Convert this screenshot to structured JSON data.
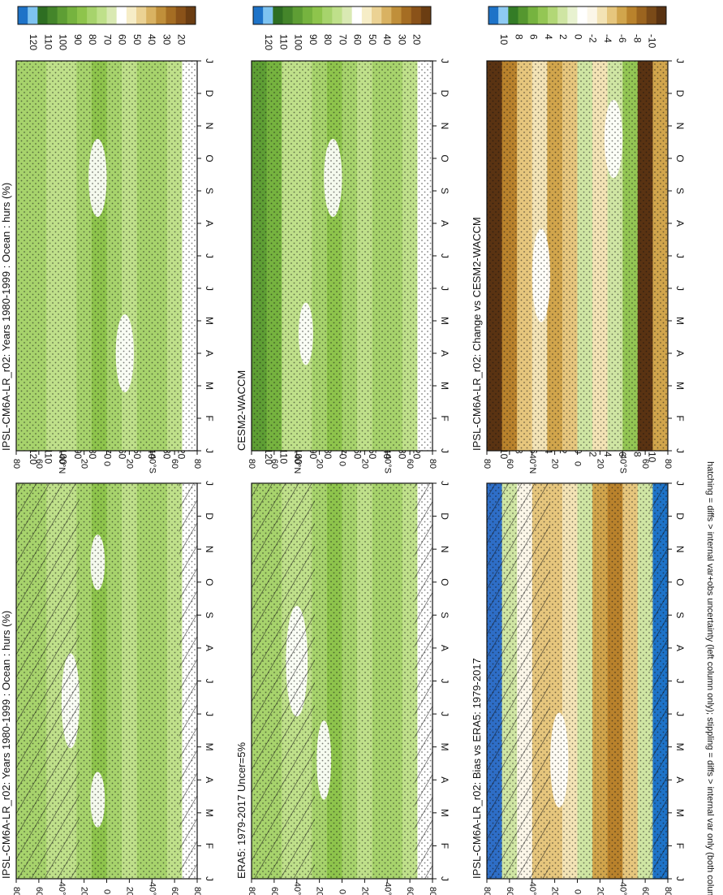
{
  "figure_footer": "hatching = diffs > internal var+obs uncertainty (left column only); stippling = diffs > internal var only (both columns)",
  "colors": {
    "abs_scale": [
      "#ffffff",
      "#d9e9b3",
      "#bfe08a",
      "#a7d36c",
      "#8ec44c",
      "#76b33f",
      "#5e9e34",
      "#44852a",
      "#2e6e22",
      "#1e73c8",
      "#7ec3f0"
    ],
    "abs_scale_brown": [
      "#6b3d12",
      "#8a5219",
      "#a56d23",
      "#c08f3a",
      "#d9b262",
      "#ebd294",
      "#f6edc7"
    ],
    "diff_scale": [
      "#5a3312",
      "#7a4a18",
      "#9b641f",
      "#b9822c",
      "#d1a54c",
      "#e6c67d",
      "#f3e3b5",
      "#fbf6e8",
      "#ffffff",
      "#e8f2d0",
      "#cfe5a3",
      "#b2d776",
      "#94c654",
      "#76b33f",
      "#55972f",
      "#347c26",
      "#1e73c8",
      "#8ecaf2"
    ],
    "stipple": "#111111"
  },
  "chart_data": [
    {
      "id": "p1",
      "type": "heatmap",
      "title": "IPSL-CM6A-LR_r02: Years 1980-1999 : Ocean : hurs (%)",
      "x_categories": [
        "J",
        "F",
        "M",
        "A",
        "M",
        "J",
        "J",
        "A",
        "S",
        "O",
        "N",
        "D",
        "J"
      ],
      "lat_ticks": [
        "80",
        "60",
        "40°N",
        "20",
        "0",
        "20",
        "40°S",
        "60",
        "80"
      ],
      "lat_range": [
        -90,
        90
      ],
      "colorbar_ticks": [
        "120",
        "110",
        "100",
        "90",
        "80",
        "70",
        "60",
        "50",
        "40",
        "30",
        "20"
      ],
      "hatching": true,
      "stippling": true
    },
    {
      "id": "p2",
      "type": "heatmap",
      "title": "IPSL-CM6A-LR_r02: Years 1980-1999 : Ocean : hurs (%)",
      "x_categories": [
        "J",
        "F",
        "M",
        "A",
        "M",
        "J",
        "J",
        "A",
        "S",
        "O",
        "N",
        "D",
        "J"
      ],
      "lat_ticks": [
        "80",
        "60",
        "40°N",
        "20",
        "0",
        "20",
        "40°S",
        "60",
        "80"
      ],
      "lat_range": [
        -90,
        90
      ],
      "colorbar_ticks": [
        "120",
        "110",
        "100",
        "90",
        "80",
        "70",
        "60",
        "50",
        "40",
        "30",
        "20"
      ],
      "hatching": false,
      "stippling": true
    },
    {
      "id": "p3",
      "type": "heatmap",
      "title": "ERA5: 1979-2017 Uncer=5%",
      "x_categories": [
        "J",
        "F",
        "M",
        "A",
        "M",
        "J",
        "J",
        "A",
        "S",
        "O",
        "N",
        "D",
        "J"
      ],
      "lat_ticks": [
        "80",
        "60",
        "40°N",
        "20",
        "0",
        "20",
        "40°S",
        "60",
        "80"
      ],
      "lat_range": [
        -90,
        90
      ],
      "colorbar_ticks": [
        "120",
        "110",
        "100",
        "90",
        "80",
        "70",
        "60",
        "50",
        "40",
        "30",
        "20"
      ],
      "hatching": true,
      "stippling": true
    },
    {
      "id": "p4",
      "type": "heatmap",
      "title": "CESM2-WACCM",
      "x_categories": [
        "J",
        "F",
        "M",
        "A",
        "M",
        "J",
        "J",
        "A",
        "S",
        "O",
        "N",
        "D",
        "J"
      ],
      "lat_ticks": [
        "80",
        "60",
        "40°N",
        "20",
        "0",
        "20",
        "40°S",
        "60",
        "80"
      ],
      "lat_range": [
        -90,
        90
      ],
      "colorbar_ticks": [
        "120",
        "110",
        "100",
        "90",
        "80",
        "70",
        "60",
        "50",
        "40",
        "30",
        "20"
      ],
      "hatching": false,
      "stippling": true
    },
    {
      "id": "p5",
      "type": "heatmap",
      "title": "IPSL-CM6A-LR_r02: Bias vs ERA5: 1979-2017",
      "x_categories": [
        "J",
        "F",
        "M",
        "A",
        "M",
        "J",
        "J",
        "A",
        "S",
        "O",
        "N",
        "D",
        "J"
      ],
      "lat_ticks": [
        "80",
        "60",
        "40°N",
        "20",
        "0",
        "20",
        "40°S",
        "60",
        "80"
      ],
      "lat_range": [
        -90,
        90
      ],
      "colorbar_ticks": [
        "10",
        "8",
        "6",
        "4",
        "2",
        "0",
        "-2",
        "-4",
        "-6",
        "-8",
        "-10"
      ],
      "hatching": true,
      "stippling": true
    },
    {
      "id": "p6",
      "type": "heatmap",
      "title": "IPSL-CM6A-LR_r02: Change vs CESM2-WACCM",
      "x_categories": [
        "J",
        "F",
        "M",
        "A",
        "M",
        "J",
        "J",
        "A",
        "S",
        "O",
        "N",
        "D",
        "J"
      ],
      "lat_ticks": [
        "80",
        "60",
        "40°N",
        "20",
        "0",
        "20",
        "40°S",
        "60",
        "80"
      ],
      "lat_range": [
        -90,
        90
      ],
      "colorbar_ticks": [
        "10",
        "8",
        "6",
        "4",
        "2",
        "0",
        "-2",
        "-4",
        "-6",
        "-8",
        "-10"
      ],
      "hatching": false,
      "stippling": true
    }
  ]
}
